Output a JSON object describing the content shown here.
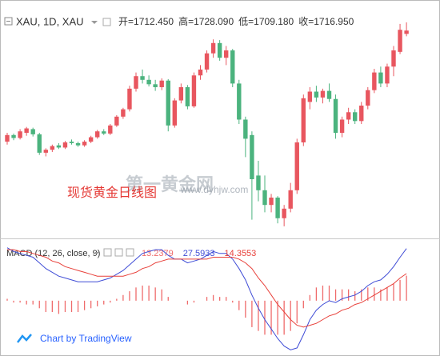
{
  "chart_data": [
    {
      "type": "candlestick",
      "title": "XAU, 1D, XAU",
      "ohlc_labels": [
        "开=",
        "高=",
        "低=",
        "收="
      ],
      "ohlc_value_labels": [
        "1712.450",
        "1728.090",
        "1709.180",
        "1716.950"
      ],
      "annotation": "现货黄金日线图",
      "watermark": [
        "第一黄金网",
        "www.dyhjw.com"
      ],
      "up_color": "#e8565f",
      "down_color": "#4bb37e",
      "ylim": [
        1440,
        1740
      ],
      "open": [
        1566,
        1575,
        1571,
        1578,
        1583,
        1576,
        1551,
        1555,
        1561,
        1558,
        1566,
        1564,
        1561,
        1566,
        1572,
        1580,
        1577,
        1588,
        1600,
        1610,
        1638,
        1655,
        1650,
        1644,
        1640,
        1649,
        1588,
        1622,
        1640,
        1614,
        1656,
        1664,
        1686,
        1700,
        1680,
        1690,
        1645,
        1596,
        1575,
        1520,
        1500,
        1480,
        1490,
        1462,
        1475,
        1500,
        1565,
        1620,
        1634,
        1626,
        1635,
        1624,
        1578,
        1596,
        1606,
        1594,
        1615,
        1636,
        1660,
        1645,
        1668,
        1688,
        1712.45
      ],
      "high": [
        1578,
        1577,
        1583,
        1586,
        1585,
        1578,
        1557,
        1562,
        1564,
        1567,
        1569,
        1566,
        1568,
        1574,
        1582,
        1583,
        1590,
        1602,
        1612,
        1642,
        1660,
        1664,
        1656,
        1650,
        1652,
        1651,
        1625,
        1645,
        1643,
        1660,
        1670,
        1690,
        1705,
        1704,
        1696,
        1692,
        1650,
        1600,
        1580,
        1540,
        1520,
        1495,
        1492,
        1480,
        1510,
        1570,
        1630,
        1640,
        1642,
        1638,
        1645,
        1630,
        1600,
        1612,
        1610,
        1620,
        1640,
        1665,
        1668,
        1672,
        1696,
        1726,
        1728.09
      ],
      "low": [
        1562,
        1568,
        1569,
        1574,
        1573,
        1548,
        1546,
        1552,
        1556,
        1556,
        1562,
        1559,
        1559,
        1564,
        1570,
        1575,
        1575,
        1586,
        1597,
        1607,
        1634,
        1645,
        1641,
        1635,
        1636,
        1580,
        1585,
        1618,
        1610,
        1612,
        1650,
        1660,
        1680,
        1676,
        1670,
        1640,
        1590,
        1545,
        1460,
        1485,
        1470,
        1470,
        1455,
        1451,
        1470,
        1495,
        1560,
        1610,
        1620,
        1618,
        1620,
        1570,
        1572,
        1590,
        1590,
        1590,
        1610,
        1632,
        1640,
        1640,
        1655,
        1685,
        1709.18
      ],
      "close": [
        1575,
        1571,
        1580,
        1584,
        1576,
        1551,
        1555,
        1560,
        1558,
        1565,
        1564,
        1561,
        1566,
        1572,
        1580,
        1577,
        1588,
        1600,
        1610,
        1638,
        1655,
        1650,
        1644,
        1640,
        1649,
        1588,
        1622,
        1640,
        1614,
        1656,
        1664,
        1686,
        1700,
        1680,
        1690,
        1645,
        1596,
        1570,
        1515,
        1500,
        1480,
        1490,
        1462,
        1475,
        1500,
        1565,
        1625,
        1634,
        1626,
        1635,
        1624,
        1578,
        1596,
        1606,
        1594,
        1615,
        1636,
        1660,
        1645,
        1668,
        1690,
        1718,
        1716.95
      ]
    },
    {
      "type": "macd",
      "title": "MACD (12, 26, close, 9)",
      "ylim": [
        -28,
        30
      ],
      "series": [
        {
          "kind": "histogram",
          "color": "#ef6b6b",
          "values": [
            1,
            -1,
            -1,
            -2,
            -2,
            -4,
            -6,
            -6,
            -7,
            -6,
            -6,
            -6,
            -5,
            -4,
            -3,
            -2,
            -1,
            1,
            3,
            5,
            7,
            8,
            8,
            7,
            6,
            2,
            0,
            0,
            -2,
            -1,
            0,
            2,
            3,
            2,
            2,
            -1,
            -5,
            -9,
            -14,
            -16,
            -18,
            -18,
            -18,
            -18,
            -16,
            -12,
            -4,
            3,
            7,
            8,
            8,
            6,
            6,
            6,
            5,
            6,
            7,
            7,
            6,
            7,
            9,
            11,
            13.2379
          ]
        },
        {
          "kind": "line",
          "color": "#3f4cd6",
          "values": [
            28,
            26,
            25,
            24,
            23,
            20,
            17,
            15,
            13,
            12,
            11,
            10,
            10,
            10,
            10,
            11,
            12,
            14,
            16,
            19,
            22,
            25,
            26,
            27,
            27,
            24,
            22,
            22,
            20,
            21,
            22,
            24,
            26,
            25,
            25,
            22,
            17,
            11,
            3,
            -4,
            -10,
            -15,
            -20,
            -24,
            -26,
            -25,
            -18,
            -10,
            -5,
            -2,
            0,
            -1,
            1,
            2,
            3,
            5,
            8,
            10,
            11,
            14,
            18,
            23,
            27.5933
          ]
        },
        {
          "kind": "line",
          "color": "#e8403a",
          "values": [
            27,
            27,
            26,
            26,
            25,
            24,
            23,
            21,
            20,
            18,
            17,
            16,
            15,
            14,
            13,
            13,
            13,
            13,
            13,
            14,
            15,
            17,
            18,
            20,
            21,
            22,
            22,
            22,
            22,
            22,
            22,
            22,
            23,
            23,
            23,
            23,
            22,
            20,
            17,
            12,
            8,
            3,
            -2,
            -6,
            -10,
            -13,
            -14,
            -13,
            -12,
            -10,
            -8,
            -7,
            -5,
            -4,
            -2,
            -1,
            1,
            3,
            5,
            7,
            9,
            12,
            14.3553
          ]
        }
      ]
    }
  ],
  "footer": "Chart by TradingView"
}
